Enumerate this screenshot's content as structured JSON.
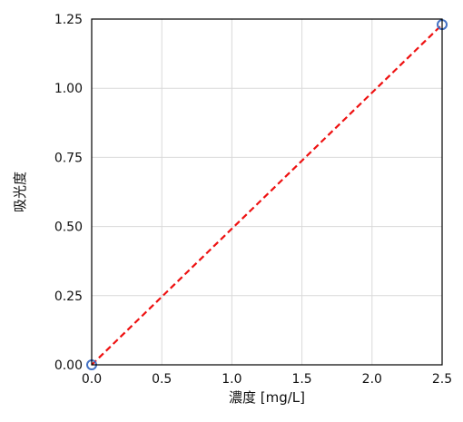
{
  "chart_data": {
    "type": "scatter",
    "xlabel": "濃度 [mg/L]",
    "ylabel": "吸光度",
    "xlim": [
      0,
      2.5
    ],
    "ylim": [
      0,
      1.25
    ],
    "grid": true,
    "x_ticks": [
      "0.0",
      "0.5",
      "1.0",
      "1.5",
      "2.0",
      "2.5"
    ],
    "y_ticks": [
      "0.00",
      "0.25",
      "0.50",
      "0.75",
      "1.00",
      "1.25"
    ],
    "series": [
      {
        "kind": "markers",
        "marker": "open-circle",
        "color": "#4472c4",
        "points": [
          {
            "x": 0.0,
            "y": 0.0
          },
          {
            "x": 2.5,
            "y": 1.23
          }
        ]
      },
      {
        "kind": "line",
        "line_style": "dashed",
        "color": "#ee1111",
        "points": [
          {
            "x": 0.0,
            "y": 0.0
          },
          {
            "x": 2.5,
            "y": 1.23
          }
        ]
      }
    ]
  }
}
